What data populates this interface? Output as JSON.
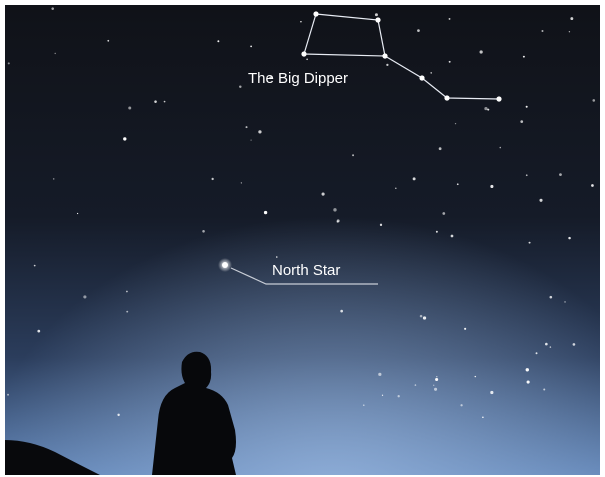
{
  "labels": {
    "big_dipper": "The Big Dipper",
    "north_star": "North Star"
  }
}
